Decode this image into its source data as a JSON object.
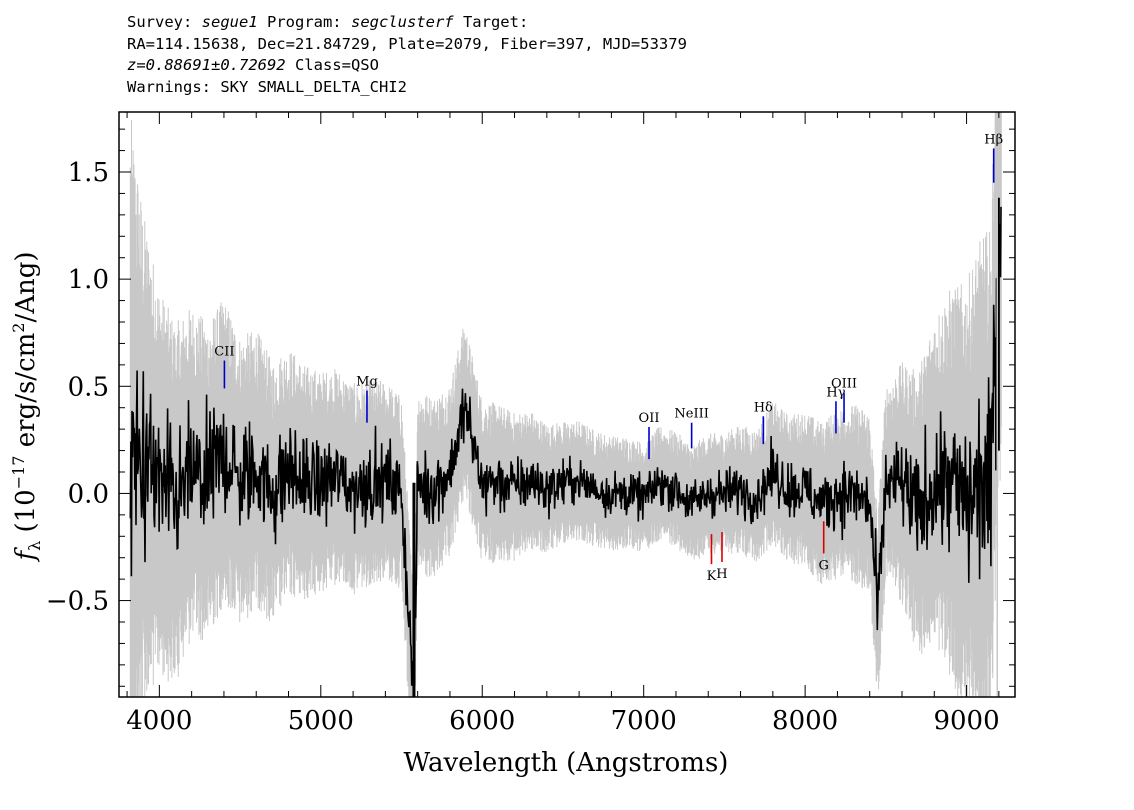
{
  "header": {
    "line1": {
      "survey_label": "Survey: ",
      "survey": "segue1",
      "program_label": " Program: ",
      "program": "segclusterf",
      "target_label": " Target:"
    },
    "line2": "RA=114.15638, Dec=21.84729, Plate=2079, Fiber=397, MJD=53379",
    "line3": {
      "z": "z=0.88691±0.72692",
      "class": " Class=QSO"
    },
    "line4": "Warnings: SKY SMALL_DELTA_CHI2"
  },
  "colors": {
    "flux": "#000000",
    "error": "#c8c8c8",
    "emission": "#0000cc",
    "absorption": "#dd0000",
    "sky": "#000000"
  },
  "chart_data": {
    "type": "line",
    "title": "",
    "xlabel": "Wavelength (Angstroms)",
    "ylabel": "f_λ (10⁻¹⁷ erg/s/cm²/Ang)",
    "xlim": [
      3750,
      9300
    ],
    "ylim": [
      -0.95,
      1.78
    ],
    "xticks": [
      4000,
      5000,
      6000,
      7000,
      8000,
      9000
    ],
    "xtick_labels": [
      "4000",
      "5000",
      "6000",
      "7000",
      "8000",
      "9000"
    ],
    "yticks": [
      -0.5,
      0.0,
      0.5,
      1.0,
      1.5
    ],
    "ytick_labels": [
      "−0.5",
      "0.0",
      "0.5",
      "1.0",
      "1.5"
    ],
    "series": [
      {
        "role": "flux",
        "x": [
          3820,
          3900,
          4000,
          4100,
          4200,
          4300,
          4400,
          4500,
          4600,
          4700,
          4800,
          4900,
          5000,
          5100,
          5200,
          5300,
          5400,
          5500,
          5577,
          5600,
          5700,
          5800,
          5890,
          6000,
          6100,
          6200,
          6300,
          6400,
          6500,
          6600,
          6700,
          6800,
          6900,
          7000,
          7100,
          7200,
          7300,
          7400,
          7500,
          7600,
          7700,
          7800,
          7900,
          8000,
          8100,
          8200,
          8300,
          8400,
          8450,
          8500,
          8600,
          8700,
          8800,
          8900,
          9000,
          9100,
          9150,
          9200
        ],
        "y": [
          0.1,
          0.15,
          0.05,
          -0.05,
          0.1,
          0.05,
          0.2,
          0.05,
          0.12,
          0.0,
          0.1,
          0.05,
          0.05,
          0.08,
          0.02,
          0.05,
          0.06,
          0.0,
          -0.95,
          0.05,
          0.02,
          0.1,
          0.4,
          0.05,
          0.05,
          0.03,
          0.06,
          0.02,
          0.05,
          0.06,
          0.02,
          0.0,
          0.0,
          -0.02,
          0.05,
          0.02,
          -0.05,
          0.0,
          0.0,
          0.02,
          -0.02,
          0.1,
          0.02,
          0.02,
          -0.05,
          0.0,
          0.0,
          -0.05,
          -0.55,
          0.05,
          0.05,
          -0.1,
          0.05,
          0.05,
          -0.05,
          0.05,
          0.0,
          1.35
        ]
      },
      {
        "role": "error",
        "x": [
          3820,
          3900,
          4000,
          4200,
          4400,
          4600,
          4800,
          5000,
          5500,
          6000,
          6500,
          7000,
          7500,
          8000,
          8500,
          8800,
          9000,
          9200
        ],
        "y": [
          1.3,
          0.9,
          0.7,
          0.6,
          0.55,
          0.5,
          0.45,
          0.4,
          0.35,
          0.3,
          0.22,
          0.2,
          0.22,
          0.28,
          0.35,
          0.6,
          0.8,
          1.0
        ]
      }
    ],
    "lines": [
      {
        "name": "CII",
        "x": 4403,
        "kind": "emission",
        "y_top": 0.62,
        "y_bottom": 0.49
      },
      {
        "name": "Mg",
        "x": 5286,
        "kind": "emission",
        "y_top": 0.48,
        "y_bottom": 0.33
      },
      {
        "name": "OII",
        "x": 7033,
        "kind": "emission",
        "y_top": 0.31,
        "y_bottom": 0.16
      },
      {
        "name": "NeIII",
        "x": 7297,
        "kind": "emission",
        "y_top": 0.33,
        "y_bottom": 0.21
      },
      {
        "name": "Hδ",
        "x": 7741,
        "kind": "emission",
        "y_top": 0.36,
        "y_bottom": 0.23
      },
      {
        "name": "Hγ",
        "x": 8191,
        "kind": "emission",
        "y_top": 0.43,
        "y_bottom": 0.28
      },
      {
        "name": "OIII",
        "x": 8241,
        "kind": "emission",
        "y_top": 0.47,
        "y_bottom": 0.33
      },
      {
        "name": "Hβ",
        "x": 9168,
        "kind": "emission",
        "y_top": 1.61,
        "y_bottom": 1.45
      },
      {
        "name": "K",
        "x": 7420,
        "kind": "absorption",
        "y_top": -0.19,
        "y_bottom": -0.33
      },
      {
        "name": "H",
        "x": 7485,
        "kind": "absorption",
        "y_top": -0.18,
        "y_bottom": -0.32
      },
      {
        "name": "G",
        "x": 8115,
        "kind": "absorption",
        "y_top": -0.13,
        "y_bottom": -0.28
      }
    ],
    "grid": false,
    "legend": "none"
  }
}
